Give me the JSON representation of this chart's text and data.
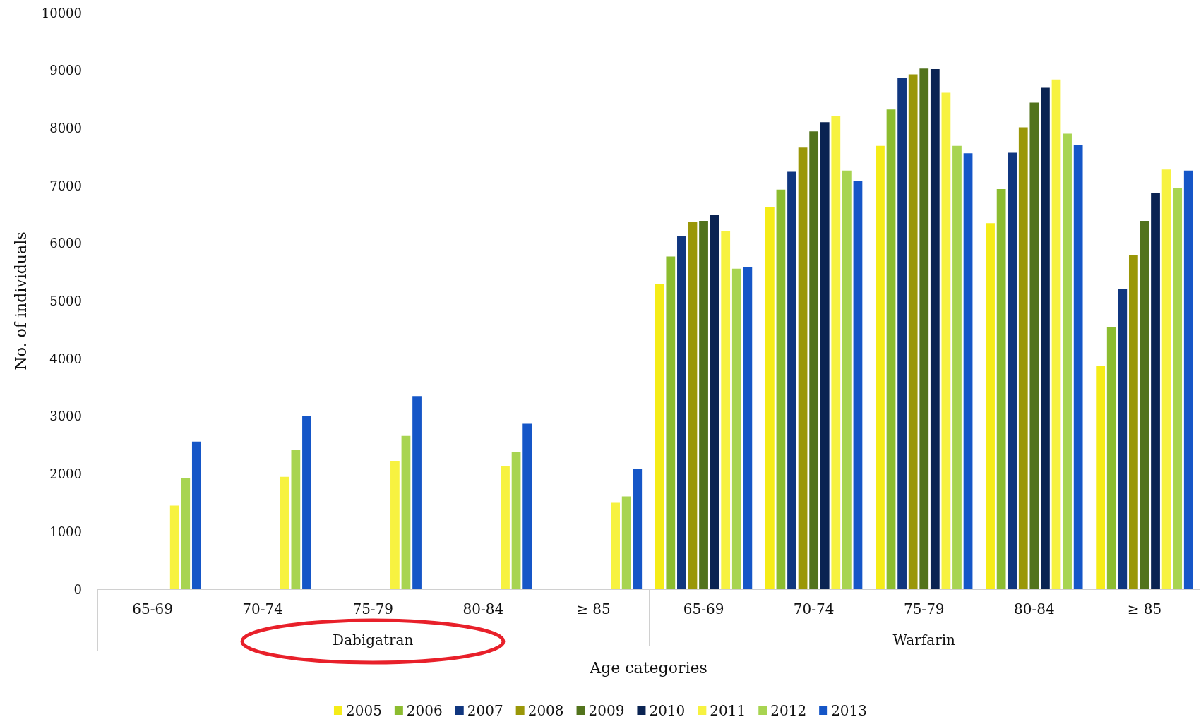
{
  "chart_data": {
    "type": "bar",
    "ylabel": "No. of individuals",
    "xlabel": "Age categories",
    "categories": [
      "65-69",
      "70-74",
      "75-79",
      "80-84",
      "≥ 85",
      "65-69",
      "70-74",
      "75-79",
      "80-84",
      "≥ 85"
    ],
    "annotations": [
      "Dabigatran",
      "Warfarin"
    ],
    "ylim": [
      0,
      10000
    ],
    "yticks": [
      0,
      1000,
      2000,
      3000,
      4000,
      5000,
      6000,
      7000,
      8000,
      9000,
      10000
    ],
    "grid": false,
    "legend": "bottom",
    "series": [
      {
        "name": "2005",
        "color": "#f5ec17",
        "values": [
          null,
          null,
          null,
          null,
          null,
          5290,
          6630,
          7690,
          6350,
          3870
        ]
      },
      {
        "name": "2006",
        "color": "#8cbc2f",
        "values": [
          null,
          null,
          null,
          null,
          null,
          5770,
          6930,
          8320,
          6940,
          4550
        ]
      },
      {
        "name": "2007",
        "color": "#10367f",
        "values": [
          null,
          null,
          null,
          null,
          null,
          6130,
          7240,
          8870,
          7570,
          5210
        ]
      },
      {
        "name": "2008",
        "color": "#9a9708",
        "values": [
          null,
          null,
          null,
          null,
          null,
          6370,
          7660,
          8930,
          8010,
          5800
        ]
      },
      {
        "name": "2009",
        "color": "#52731c",
        "values": [
          null,
          null,
          null,
          null,
          null,
          6390,
          7940,
          9030,
          8440,
          6390
        ]
      },
      {
        "name": "2010",
        "color": "#0a2352",
        "values": [
          null,
          null,
          null,
          null,
          null,
          6500,
          8100,
          9020,
          8710,
          6870
        ]
      },
      {
        "name": "2011",
        "color": "#f7f240",
        "values": [
          1450,
          1950,
          2220,
          2130,
          1500,
          6210,
          8200,
          8610,
          8840,
          7280
        ]
      },
      {
        "name": "2012",
        "color": "#a8d451",
        "values": [
          1930,
          2410,
          2660,
          2380,
          1610,
          5560,
          7260,
          7690,
          7900,
          6960
        ]
      },
      {
        "name": "2013",
        "color": "#1556c7",
        "values": [
          2560,
          3000,
          3350,
          2870,
          2090,
          5590,
          7080,
          7560,
          7700,
          7260
        ]
      }
    ]
  }
}
